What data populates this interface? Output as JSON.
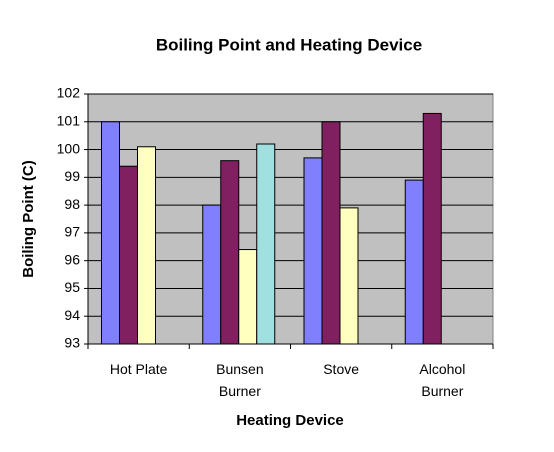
{
  "chart_data": {
    "type": "bar",
    "title": "Boiling Point and Heating Device",
    "x_label": "Heating Device",
    "y_label": "Boiling Point (C)",
    "categories": [
      "Hot Plate",
      "Bunsen Burner",
      "Stove",
      "Alcohol Burner"
    ],
    "series": [
      {
        "color": "#8080ff",
        "values": [
          101,
          98,
          99.7,
          98.9
        ]
      },
      {
        "color": "#802060",
        "values": [
          99.4,
          99.6,
          101,
          101.3
        ]
      },
      {
        "color": "#ffffc0",
        "values": [
          100.1,
          96.4,
          97.9,
          null
        ]
      },
      {
        "color": "#a0e0e0",
        "values": [
          null,
          100.2,
          null,
          null
        ]
      }
    ],
    "ylim": [
      93,
      102
    ],
    "yticks": [
      93,
      94,
      95,
      96,
      97,
      98,
      99,
      100,
      101,
      102
    ],
    "grid": true,
    "plot_background": "#c0c0c0"
  }
}
